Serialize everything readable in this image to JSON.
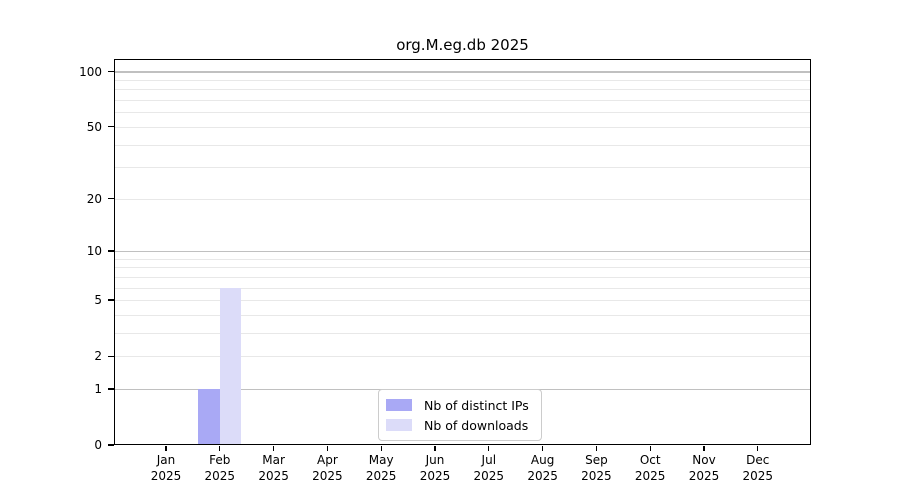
{
  "page": {
    "background": "#ffffff"
  },
  "chart_data": {
    "type": "bar",
    "title": "org.M.eg.db 2025",
    "categories": [
      "Jan",
      "Feb",
      "Mar",
      "Apr",
      "May",
      "Jun",
      "Jul",
      "Aug",
      "Sep",
      "Oct",
      "Nov",
      "Dec"
    ],
    "x_tick_second_line": "2025",
    "series": [
      {
        "name": "Nb of distinct IPs",
        "color": "#a9a9f5",
        "values": [
          0,
          1,
          0,
          0,
          0,
          0,
          0,
          0,
          0,
          0,
          0,
          0
        ]
      },
      {
        "name": "Nb of downloads",
        "color": "#dcdcf9",
        "values": [
          0,
          6,
          0,
          0,
          0,
          0,
          0,
          0,
          0,
          0,
          0,
          0
        ]
      }
    ],
    "xlabel": "",
    "ylabel": "",
    "y_scale": "log10(1+value)",
    "y_ticks": [
      0,
      1,
      2,
      5,
      10,
      20,
      50,
      100
    ],
    "y_axis_top_value": 117,
    "grid": true,
    "grid_major_values": [
      1,
      10,
      100
    ],
    "grid_minor_values": [
      2,
      3,
      4,
      5,
      6,
      7,
      8,
      9,
      20,
      30,
      40,
      50,
      60,
      70,
      80,
      90
    ],
    "legend_position": "bottom-center",
    "colors": {
      "axis": "#000000",
      "text": "#000000",
      "grid_major": "#c0c0c0",
      "grid_minor": "#e8e8e8",
      "legend_border": "#cccccc",
      "background": "#ffffff"
    }
  }
}
